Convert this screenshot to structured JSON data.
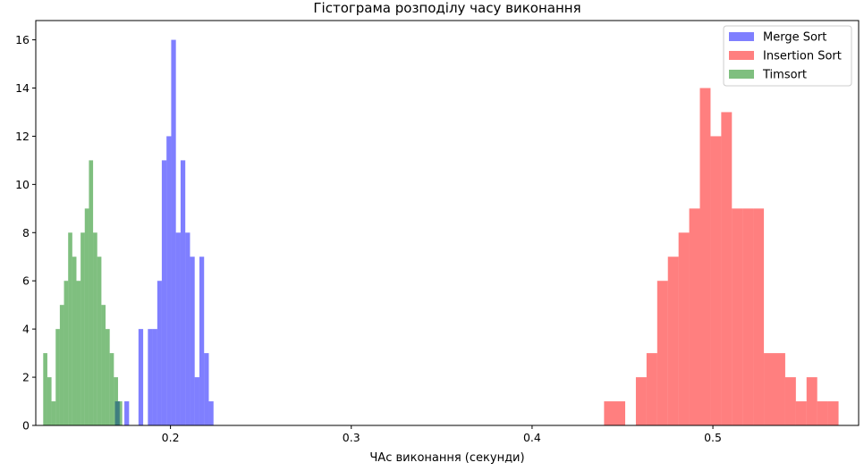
{
  "chart_data": {
    "type": "histogram",
    "title": "Гістограма розподілу часу виконання",
    "xlabel": "ЧАс виконання (секунди)",
    "ylabel": "",
    "xlim": [
      0.1255,
      0.5806
    ],
    "ylim": [
      0,
      16.8
    ],
    "x_ticks": [
      0.2,
      0.3,
      0.4,
      0.5
    ],
    "x_tick_labels": [
      "0.2",
      "0.3",
      "0.4",
      "0.5"
    ],
    "y_ticks": [
      0,
      2,
      4,
      6,
      8,
      10,
      12,
      14,
      16
    ],
    "y_tick_labels": [
      "0",
      "2",
      "4",
      "6",
      "8",
      "10",
      "12",
      "14",
      "16"
    ],
    "grid": false,
    "legend_position": "top-right",
    "series": [
      {
        "name": "Merge Sort",
        "color": "#0000ff",
        "alpha": 0.5,
        "bins": [
          {
            "x0": 0.1693,
            "x1": 0.1719,
            "count": 1
          },
          {
            "x0": 0.1745,
            "x1": 0.1771,
            "count": 1
          },
          {
            "x0": 0.1823,
            "x1": 0.1849,
            "count": 4
          },
          {
            "x0": 0.1875,
            "x1": 0.1901,
            "count": 4
          },
          {
            "x0": 0.1901,
            "x1": 0.1927,
            "count": 4
          },
          {
            "x0": 0.1927,
            "x1": 0.1952,
            "count": 6
          },
          {
            "x0": 0.1952,
            "x1": 0.1978,
            "count": 11
          },
          {
            "x0": 0.1978,
            "x1": 0.2004,
            "count": 12
          },
          {
            "x0": 0.2004,
            "x1": 0.203,
            "count": 16
          },
          {
            "x0": 0.203,
            "x1": 0.2056,
            "count": 8
          },
          {
            "x0": 0.2056,
            "x1": 0.2082,
            "count": 11
          },
          {
            "x0": 0.2082,
            "x1": 0.2108,
            "count": 8
          },
          {
            "x0": 0.2108,
            "x1": 0.2134,
            "count": 7
          },
          {
            "x0": 0.2134,
            "x1": 0.216,
            "count": 2
          },
          {
            "x0": 0.216,
            "x1": 0.2186,
            "count": 7
          },
          {
            "x0": 0.2186,
            "x1": 0.2212,
            "count": 3
          },
          {
            "x0": 0.2212,
            "x1": 0.2238,
            "count": 1
          }
        ]
      },
      {
        "name": "Insertion Sort",
        "color": "#ff0000",
        "alpha": 0.5,
        "bins": [
          {
            "x0": 0.4398,
            "x1": 0.4515,
            "count": 1
          },
          {
            "x0": 0.4574,
            "x1": 0.4633,
            "count": 2
          },
          {
            "x0": 0.4633,
            "x1": 0.4692,
            "count": 3
          },
          {
            "x0": 0.4692,
            "x1": 0.4751,
            "count": 6
          },
          {
            "x0": 0.4751,
            "x1": 0.481,
            "count": 7
          },
          {
            "x0": 0.481,
            "x1": 0.4869,
            "count": 8
          },
          {
            "x0": 0.4869,
            "x1": 0.4928,
            "count": 9
          },
          {
            "x0": 0.4928,
            "x1": 0.4987,
            "count": 14
          },
          {
            "x0": 0.4987,
            "x1": 0.5046,
            "count": 12
          },
          {
            "x0": 0.5046,
            "x1": 0.5105,
            "count": 13
          },
          {
            "x0": 0.5105,
            "x1": 0.5164,
            "count": 9
          },
          {
            "x0": 0.5164,
            "x1": 0.5223,
            "count": 9
          },
          {
            "x0": 0.5223,
            "x1": 0.5282,
            "count": 9
          },
          {
            "x0": 0.5282,
            "x1": 0.5341,
            "count": 3
          },
          {
            "x0": 0.5341,
            "x1": 0.54,
            "count": 3
          },
          {
            "x0": 0.54,
            "x1": 0.5459,
            "count": 2
          },
          {
            "x0": 0.5459,
            "x1": 0.5518,
            "count": 1
          },
          {
            "x0": 0.5518,
            "x1": 0.5577,
            "count": 2
          },
          {
            "x0": 0.5577,
            "x1": 0.5636,
            "count": 1
          },
          {
            "x0": 0.5636,
            "x1": 0.5695,
            "count": 1
          }
        ]
      },
      {
        "name": "Timsort",
        "color": "#008000",
        "alpha": 0.5,
        "bins": [
          {
            "x0": 0.1296,
            "x1": 0.1319,
            "count": 3
          },
          {
            "x0": 0.1319,
            "x1": 0.1342,
            "count": 2
          },
          {
            "x0": 0.1342,
            "x1": 0.1365,
            "count": 1
          },
          {
            "x0": 0.1365,
            "x1": 0.1388,
            "count": 4
          },
          {
            "x0": 0.1388,
            "x1": 0.1411,
            "count": 5
          },
          {
            "x0": 0.1411,
            "x1": 0.1434,
            "count": 6
          },
          {
            "x0": 0.1434,
            "x1": 0.1457,
            "count": 8
          },
          {
            "x0": 0.1457,
            "x1": 0.148,
            "count": 7
          },
          {
            "x0": 0.148,
            "x1": 0.1503,
            "count": 6
          },
          {
            "x0": 0.1503,
            "x1": 0.1526,
            "count": 8
          },
          {
            "x0": 0.1526,
            "x1": 0.1549,
            "count": 9
          },
          {
            "x0": 0.1549,
            "x1": 0.1572,
            "count": 11
          },
          {
            "x0": 0.1572,
            "x1": 0.1595,
            "count": 8
          },
          {
            "x0": 0.1595,
            "x1": 0.1618,
            "count": 7
          },
          {
            "x0": 0.1618,
            "x1": 0.1641,
            "count": 5
          },
          {
            "x0": 0.1641,
            "x1": 0.1664,
            "count": 4
          },
          {
            "x0": 0.1664,
            "x1": 0.1687,
            "count": 3
          },
          {
            "x0": 0.1687,
            "x1": 0.171,
            "count": 2
          },
          {
            "x0": 0.171,
            "x1": 0.1733,
            "count": 1
          }
        ]
      }
    ]
  }
}
